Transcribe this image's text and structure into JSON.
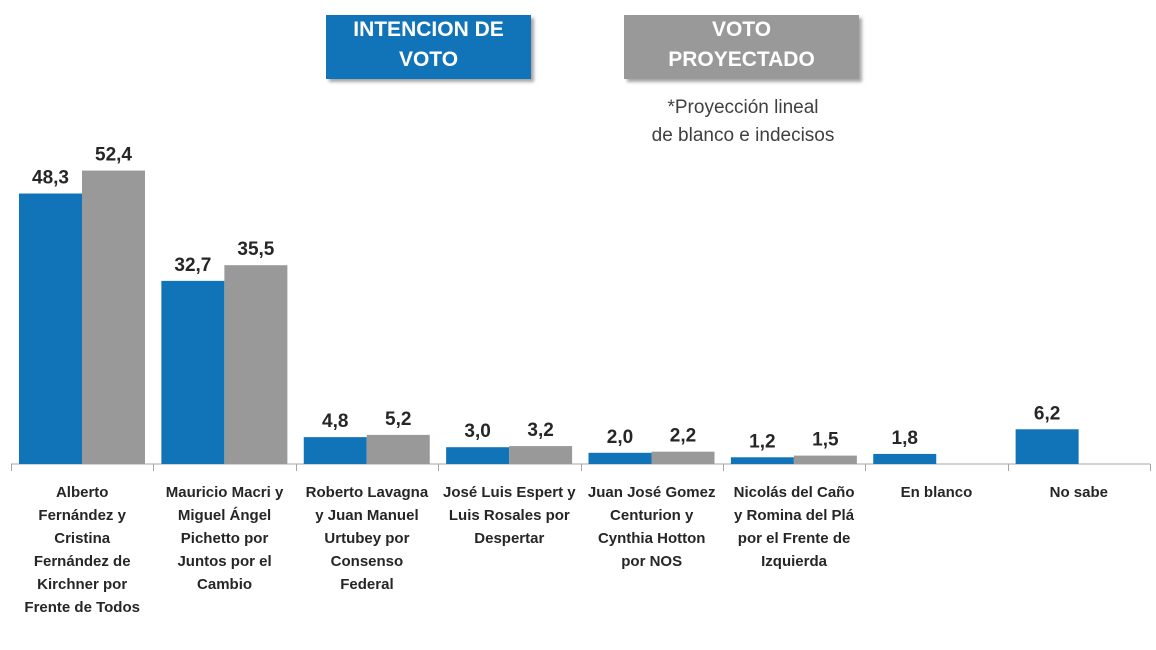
{
  "legend": {
    "intencion": {
      "line1": "INTENCION DE",
      "line2": "VOTO",
      "color": "#1274b8"
    },
    "proyectado": {
      "line1": "VOTO",
      "line2": "PROYECTADO",
      "color": "#999999"
    }
  },
  "footnote": {
    "line1": "*Proyección lineal",
    "line2": "de blanco e indecisos"
  },
  "chart_data": {
    "type": "bar",
    "categories": [
      [
        "Alberto",
        "Fernández y",
        "Cristina",
        "Fernández de",
        "Kirchner por",
        "Frente de Todos"
      ],
      [
        "Mauricio Macri y",
        "Miguel Ángel",
        "Pichetto por",
        "Juntos por el",
        "Cambio"
      ],
      [
        "Roberto Lavagna",
        "y Juan Manuel",
        "Urtubey por",
        "Consenso",
        "Federal"
      ],
      [
        "José Luis Espert y",
        "Luis Rosales por",
        "Despertar"
      ],
      [
        "Juan José Gomez",
        "Centurion y",
        "Cynthia Hotton",
        "por NOS"
      ],
      [
        "Nicolás del Caño",
        "y Romina del Plá",
        "por el Frente de",
        "Izquierda"
      ],
      [
        "En blanco"
      ],
      [
        "No sabe"
      ]
    ],
    "series": [
      {
        "name": "INTENCION DE VOTO",
        "color": "#1274b8",
        "values": [
          48.3,
          32.7,
          4.8,
          3.0,
          2.0,
          1.2,
          1.8,
          6.2
        ],
        "labels": [
          "48,3",
          "32,7",
          "4,8",
          "3,0",
          "2,0",
          "1,2",
          "1,8",
          "6,2"
        ]
      },
      {
        "name": "VOTO PROYECTADO",
        "color": "#999999",
        "values": [
          52.4,
          35.5,
          5.2,
          3.2,
          2.2,
          1.5,
          null,
          null
        ],
        "labels": [
          "52,4",
          "35,5",
          "5,2",
          "3,2",
          "2,2",
          "1,5",
          null,
          null
        ]
      }
    ],
    "ylim": [
      0,
      55
    ],
    "grid": false
  }
}
